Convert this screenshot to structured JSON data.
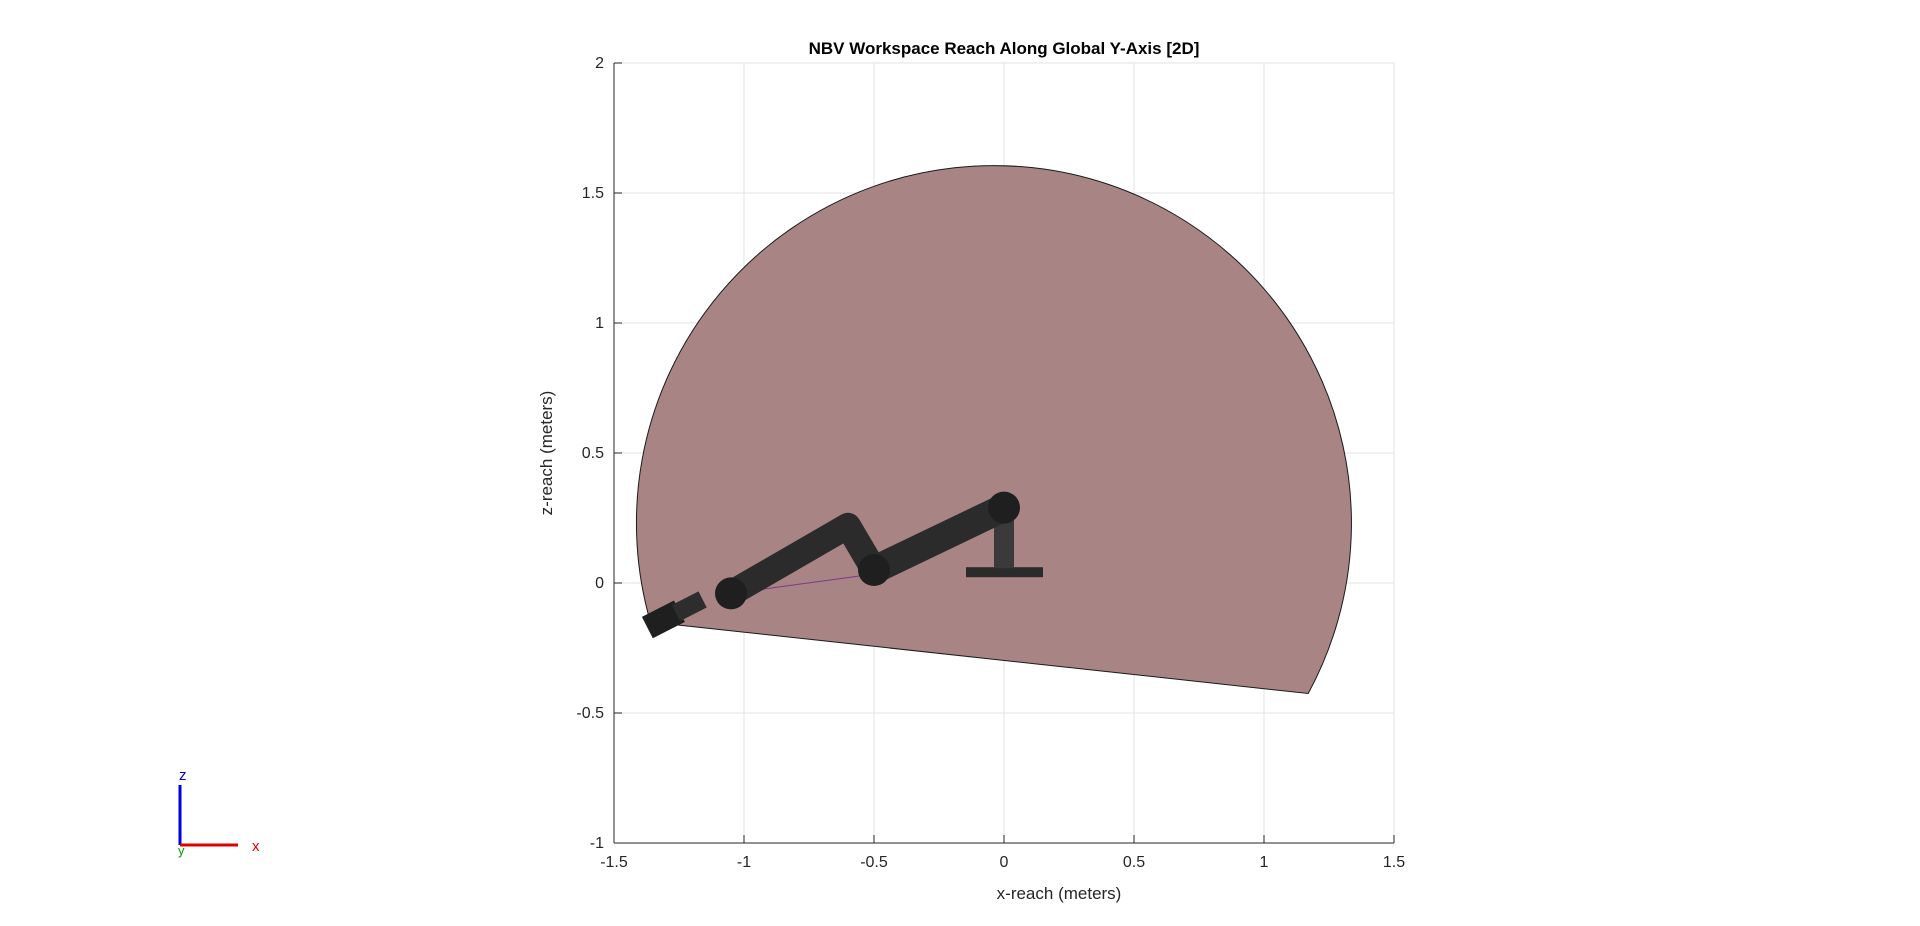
{
  "chart_data": {
    "type": "area",
    "title": "NBV Workspace Reach Along Global Y-Axis [2D]",
    "xlabel": "x-reach (meters)",
    "ylabel": "z-reach (meters)",
    "xlim": [
      -1.5,
      1.5
    ],
    "ylim": [
      -1,
      2
    ],
    "xticks": [
      -1.5,
      -1,
      -0.5,
      0,
      0.5,
      1,
      1.5
    ],
    "yticks": [
      -1,
      -0.5,
      0,
      0.5,
      1,
      1.5,
      2
    ],
    "xtick_labels": [
      "-1.5",
      "-1",
      "-0.5",
      "0",
      "0.5",
      "1",
      "1.5"
    ],
    "ytick_labels": [
      "-1",
      "-0.5",
      "0",
      "0.5",
      "1",
      "1.5",
      "2"
    ],
    "grid": true,
    "workspace_region": {
      "center": [
        0,
        0.29
      ],
      "radius": 1.375,
      "chord_start": [
        -1.36,
        -0.15
      ],
      "chord_end": [
        1.17,
        -0.425
      ],
      "color": "#a37d7d",
      "edge_color": "#1a1a1a",
      "opacity": 0.95
    },
    "robot_arm": {
      "color": "#2b2b2b",
      "base": [
        0,
        0.03
      ],
      "joints": [
        [
          0,
          0.29
        ],
        [
          -0.5,
          0.05
        ],
        [
          -1.05,
          -0.04
        ],
        [
          -1.31,
          -0.14
        ]
      ],
      "upper_link": [
        [
          0,
          0.29
        ],
        [
          -0.5,
          0.05
        ]
      ],
      "forearm_link": [
        [
          -0.5,
          0.05
        ],
        [
          -0.6,
          0.22
        ],
        [
          -1.05,
          -0.04
        ]
      ],
      "trace_color": "#7a3a8a"
    },
    "frame_indicator": {
      "labels": {
        "x": "x",
        "y": "y",
        "z": "z"
      },
      "colors": {
        "x": "#e00000",
        "y": "#00a000",
        "z": "#0000e0"
      }
    }
  }
}
